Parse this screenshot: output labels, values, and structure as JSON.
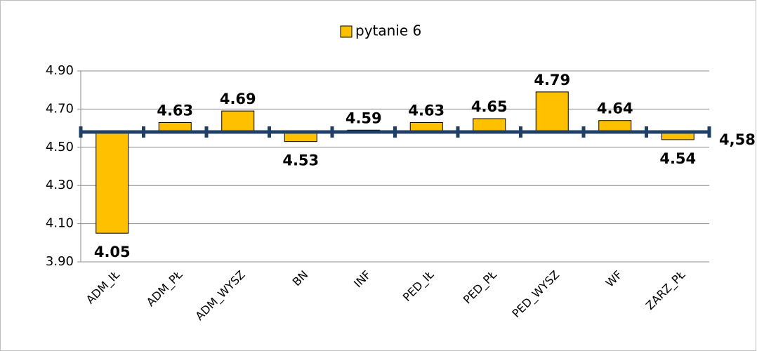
{
  "chart_data": {
    "type": "bar",
    "legend": "pytanie 6",
    "categories": [
      "ADM_IŁ",
      "ADM_PŁ",
      "ADM_WYSZ",
      "BN",
      "INF",
      "PED_IŁ",
      "PED_PŁ",
      "PED_WYSZ",
      "WF",
      "ZARZ_PŁ"
    ],
    "values": [
      4.05,
      4.63,
      4.69,
      4.53,
      4.59,
      4.63,
      4.65,
      4.79,
      4.64,
      4.54
    ],
    "color": "#ffc000",
    "reference_line": {
      "value": 4.58,
      "label": "4,58",
      "color": "#1f3f66"
    },
    "ylim": [
      3.9,
      4.9
    ],
    "yticks": [
      {
        "value": 3.9,
        "label": "3.90"
      },
      {
        "value": 4.1,
        "label": "4.10"
      },
      {
        "value": 4.3,
        "label": "4.30"
      },
      {
        "value": 4.5,
        "label": "4.50"
      },
      {
        "value": 4.7,
        "label": "4.70"
      },
      {
        "value": 4.9,
        "label": "4.90"
      }
    ],
    "grid": true
  }
}
